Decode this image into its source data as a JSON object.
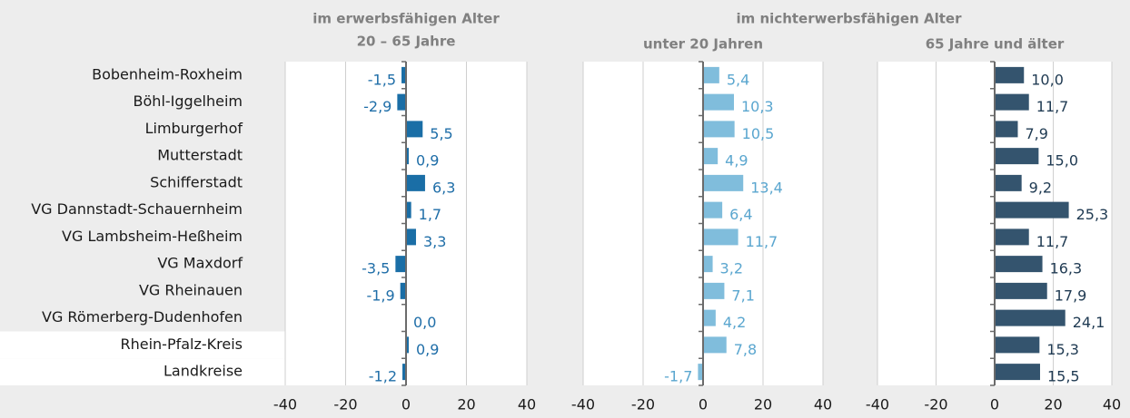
{
  "chart_data": {
    "type": "bar",
    "orientation": "horizontal",
    "categories": [
      "Bobenheim-Roxheim",
      "Böhl-Iggelheim",
      "Limburgerhof",
      "Mutterstadt",
      "Schifferstadt",
      "VG Dannstadt-Schauernheim",
      "VG Lambsheim-Heßheim",
      "VG Maxdorf",
      "VG Rheinauen",
      "VG Römerberg-Dudenhofen",
      "Rhein-Pfalz-Kreis",
      "Landkreise"
    ],
    "xlim": [
      -40,
      40
    ],
    "xticks": [
      -40,
      -20,
      0,
      20,
      40
    ],
    "grid": true,
    "highlight_rows": [
      10,
      11
    ],
    "groups": [
      {
        "label": "im erwerbsfähigen Alter",
        "series": [
          {
            "name": "20 – 65 Jahre",
            "color": "#1a6ea6",
            "label_color": "#1f6ea8",
            "values": [
              -1.5,
              -2.9,
              5.5,
              0.9,
              6.3,
              1.7,
              3.3,
              -3.5,
              -1.9,
              0.0,
              0.9,
              -1.2
            ],
            "value_labels": [
              "-1,5",
              "-2,9",
              "5,5",
              "0,9",
              "6,3",
              "1,7",
              "3,3",
              "-3,5",
              "-1,9",
              "0,0",
              "0,9",
              "-1,2"
            ]
          }
        ]
      },
      {
        "label": "im nichterwerbsfähigen Alter",
        "series": [
          {
            "name": "unter 20 Jahren",
            "color": "#80bddc",
            "label_color": "#5aa6cf",
            "values": [
              5.4,
              10.3,
              10.5,
              4.9,
              13.4,
              6.4,
              11.7,
              3.2,
              7.1,
              4.2,
              7.8,
              -1.7
            ],
            "value_labels": [
              "5,4",
              "10,3",
              "10,5",
              "4,9",
              "13,4",
              "6,4",
              "11,7",
              "3,2",
              "7,1",
              "4,2",
              "7,8",
              "-1,7"
            ]
          },
          {
            "name": "65 Jahre und älter",
            "color": "#34546e",
            "label_color": "#1f3a52",
            "values": [
              10.0,
              11.7,
              7.9,
              15.0,
              9.2,
              25.3,
              11.7,
              16.3,
              17.9,
              24.1,
              15.3,
              15.5
            ],
            "value_labels": [
              "10,0",
              "11,7",
              "7,9",
              "15,0",
              "9,2",
              "25,3",
              "11,7",
              "16,3",
              "17,9",
              "24,1",
              "15,3",
              "15,5"
            ]
          }
        ]
      }
    ]
  }
}
